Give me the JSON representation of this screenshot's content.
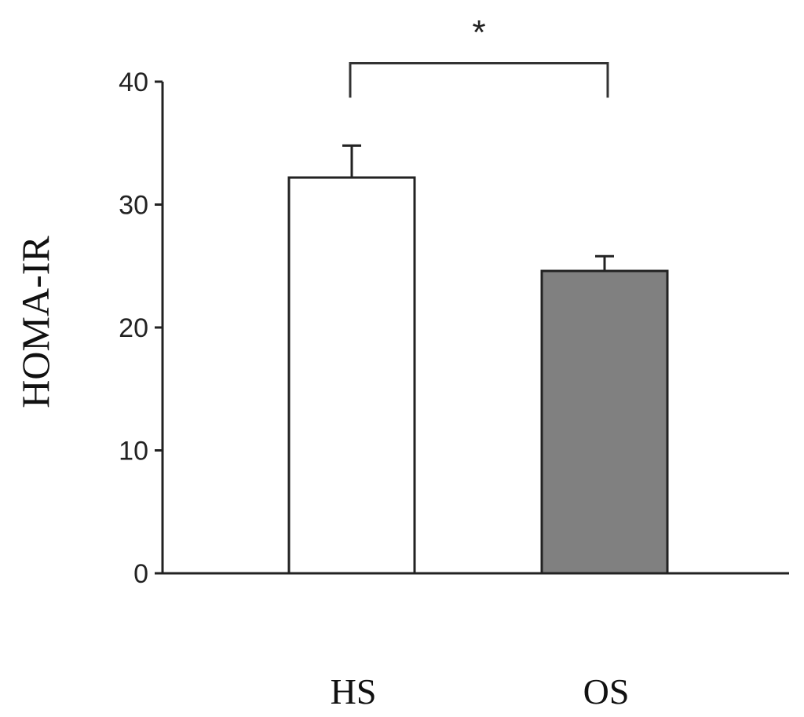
{
  "chart_data": {
    "type": "bar",
    "categories": [
      "HS",
      "OS"
    ],
    "values": [
      32.2,
      24.6
    ],
    "errors": [
      2.6,
      1.2
    ],
    "colors": [
      "#ffffff",
      "#808080"
    ],
    "xlabel": "",
    "ylabel": "HOMA-IR",
    "ylim": [
      0,
      40
    ],
    "yticks": [
      0,
      10,
      20,
      30,
      40
    ],
    "grid": false,
    "significance": {
      "between": [
        "HS",
        "OS"
      ],
      "label": "*",
      "y": 41.5,
      "drop": 2.8
    }
  }
}
